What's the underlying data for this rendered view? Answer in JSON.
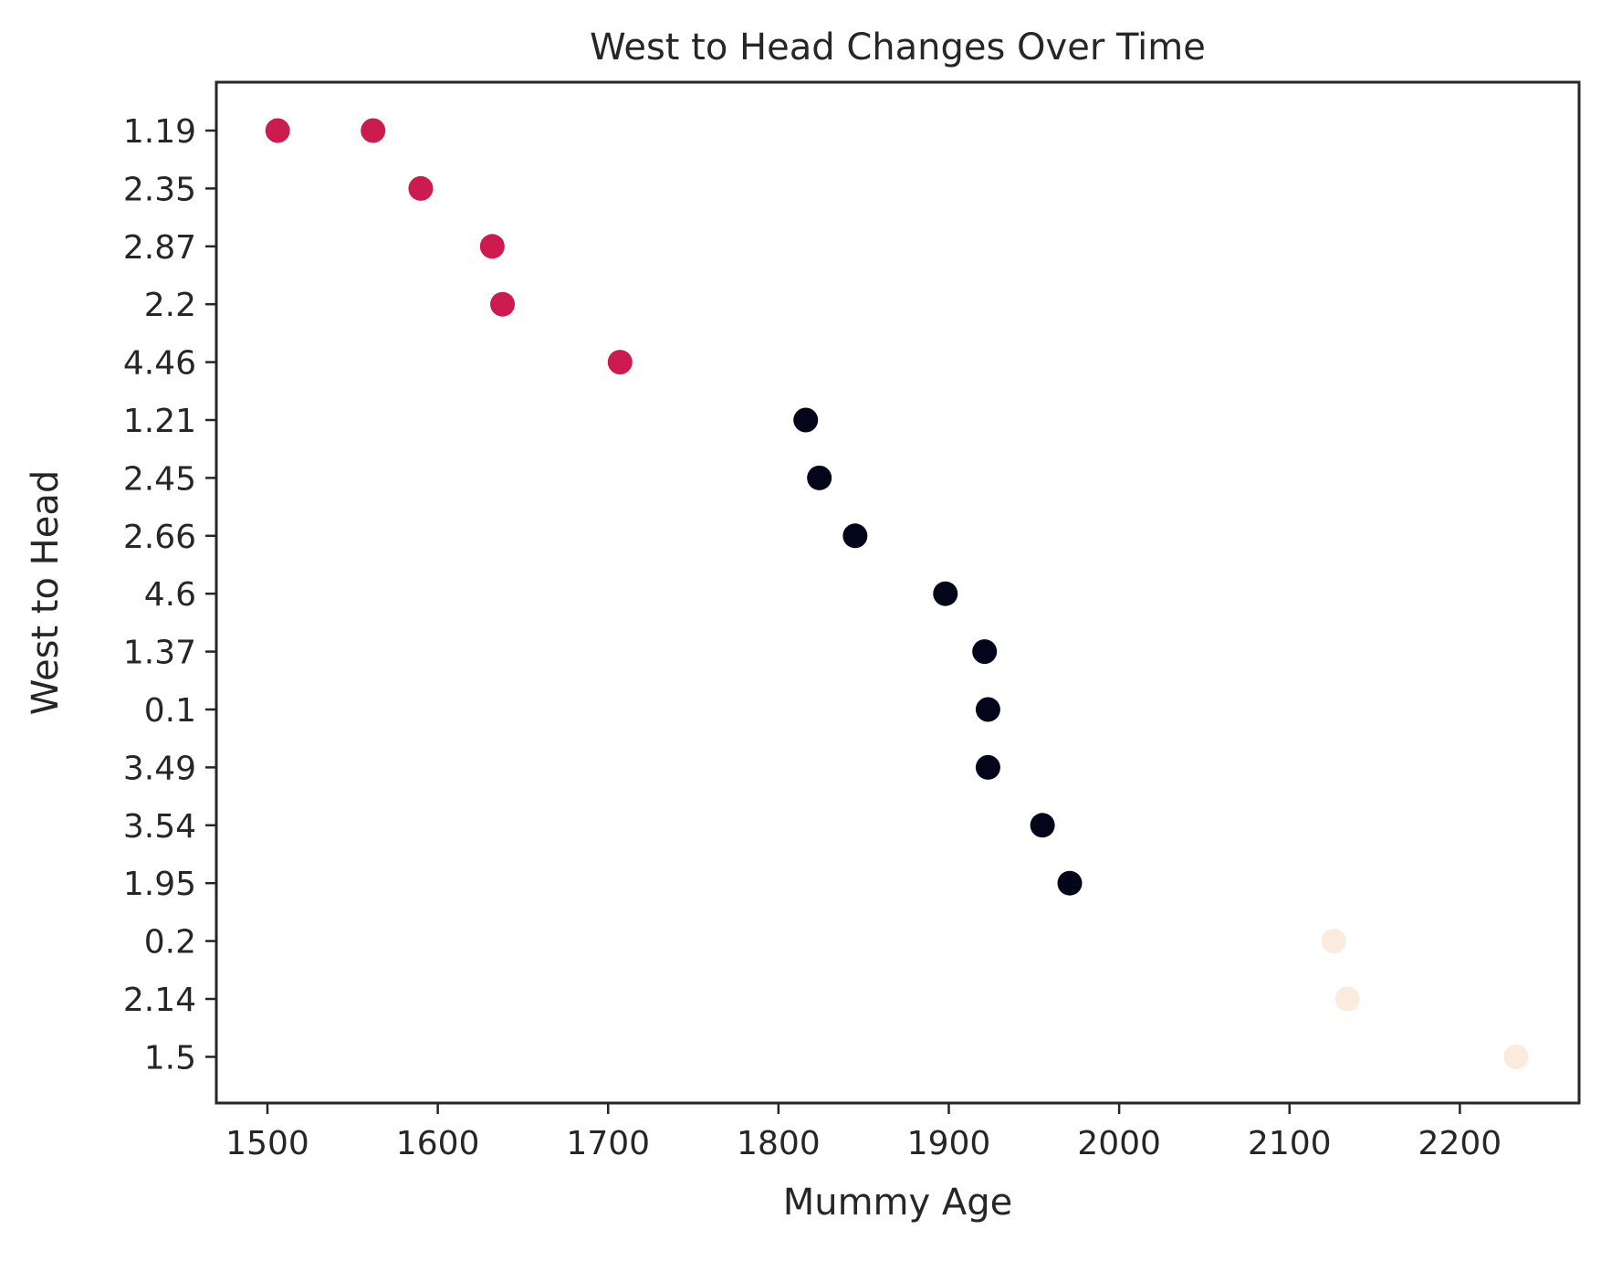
{
  "chart_data": {
    "type": "scatter",
    "title": "West to Head Changes Over Time",
    "xlabel": "Mummy Age",
    "ylabel": "West to Head",
    "xlim": [
      1470,
      2270
    ],
    "x_ticks": [
      1500,
      1600,
      1700,
      1800,
      1900,
      2000,
      2100,
      2200
    ],
    "y_axis_kind": "categorical",
    "y_categories": [
      "1.19",
      "2.35",
      "2.87",
      "2.2",
      "4.46",
      "1.21",
      "2.45",
      "2.66",
      "4.6",
      "1.37",
      "0.1",
      "3.49",
      "3.54",
      "1.95",
      "0.2",
      "2.14",
      "1.5"
    ],
    "grid": false,
    "legend": "none",
    "colors": {
      "crimson": "#cb1b4f",
      "dark": "#03051a",
      "cream": "#faebdd"
    },
    "points": [
      {
        "x": 1506,
        "y": "1.19",
        "color": "crimson"
      },
      {
        "x": 1562,
        "y": "1.19",
        "color": "crimson"
      },
      {
        "x": 1590,
        "y": "2.35",
        "color": "crimson"
      },
      {
        "x": 1632,
        "y": "2.87",
        "color": "crimson"
      },
      {
        "x": 1638,
        "y": "2.2",
        "color": "crimson"
      },
      {
        "x": 1707,
        "y": "4.46",
        "color": "crimson"
      },
      {
        "x": 1816,
        "y": "1.21",
        "color": "dark"
      },
      {
        "x": 1824,
        "y": "2.45",
        "color": "dark"
      },
      {
        "x": 1845,
        "y": "2.66",
        "color": "dark"
      },
      {
        "x": 1898,
        "y": "4.6",
        "color": "dark"
      },
      {
        "x": 1921,
        "y": "1.37",
        "color": "dark"
      },
      {
        "x": 1923,
        "y": "0.1",
        "color": "dark"
      },
      {
        "x": 1923,
        "y": "3.49",
        "color": "dark"
      },
      {
        "x": 1955,
        "y": "3.54",
        "color": "dark"
      },
      {
        "x": 1971,
        "y": "1.95",
        "color": "dark"
      },
      {
        "x": 2126,
        "y": "0.2",
        "color": "cream"
      },
      {
        "x": 2134,
        "y": "2.14",
        "color": "cream"
      },
      {
        "x": 2233,
        "y": "1.5",
        "color": "cream"
      }
    ]
  }
}
